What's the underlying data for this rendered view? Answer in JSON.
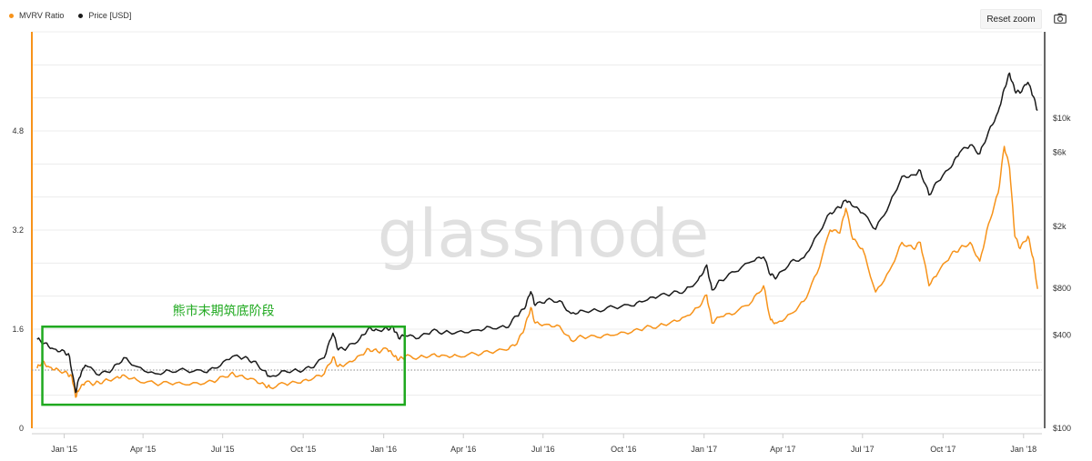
{
  "toolbar": {
    "reset_zoom_label": "Reset zoom",
    "camera_icon": "camera-icon"
  },
  "watermark": "glassnode",
  "colors": {
    "mvrv": "#f7931a",
    "price": "#1a1a1a",
    "annotation": "#1fa91f",
    "grid": "#ececec",
    "watermark": "#e0e0e0"
  },
  "chart_data": {
    "type": "line",
    "title": "",
    "legend_position": "top-left",
    "grid": true,
    "series": [
      {
        "name": "MVRV Ratio",
        "axis": "left",
        "points": [
          [
            "2014-12-01",
            0.97
          ],
          [
            "2014-12-07",
            1.08
          ],
          [
            "2014-12-15",
            0.99
          ],
          [
            "2014-12-25",
            0.95
          ],
          [
            "2015-01-05",
            0.88
          ],
          [
            "2015-01-10",
            0.82
          ],
          [
            "2015-01-14",
            0.5
          ],
          [
            "2015-01-18",
            0.62
          ],
          [
            "2015-01-25",
            0.74
          ],
          [
            "2015-02-05",
            0.72
          ],
          [
            "2015-02-15",
            0.76
          ],
          [
            "2015-03-01",
            0.82
          ],
          [
            "2015-03-10",
            0.86
          ],
          [
            "2015-03-25",
            0.78
          ],
          [
            "2015-04-15",
            0.72
          ],
          [
            "2015-05-01",
            0.73
          ],
          [
            "2015-05-20",
            0.7
          ],
          [
            "2015-06-10",
            0.72
          ],
          [
            "2015-06-25",
            0.78
          ],
          [
            "2015-07-10",
            0.88
          ],
          [
            "2015-07-20",
            0.85
          ],
          [
            "2015-08-05",
            0.8
          ],
          [
            "2015-08-18",
            0.7
          ],
          [
            "2015-08-24",
            0.66
          ],
          [
            "2015-09-10",
            0.72
          ],
          [
            "2015-09-25",
            0.73
          ],
          [
            "2015-10-10",
            0.78
          ],
          [
            "2015-10-25",
            0.88
          ],
          [
            "2015-11-04",
            1.15
          ],
          [
            "2015-11-10",
            1.0
          ],
          [
            "2015-11-20",
            1.05
          ],
          [
            "2015-12-05",
            1.18
          ],
          [
            "2015-12-15",
            1.28
          ],
          [
            "2015-12-25",
            1.24
          ],
          [
            "2016-01-05",
            1.28
          ],
          [
            "2016-01-12",
            1.17
          ],
          [
            "2016-01-18",
            1.1
          ],
          [
            "2016-01-25",
            1.16
          ],
          [
            "2016-02-10",
            1.14
          ],
          [
            "2016-02-25",
            1.19
          ],
          [
            "2016-03-10",
            1.18
          ],
          [
            "2016-03-25",
            1.17
          ],
          [
            "2016-04-15",
            1.2
          ],
          [
            "2016-05-01",
            1.23
          ],
          [
            "2016-05-20",
            1.26
          ],
          [
            "2016-06-01",
            1.36
          ],
          [
            "2016-06-10",
            1.62
          ],
          [
            "2016-06-17",
            1.95
          ],
          [
            "2016-06-22",
            1.7
          ],
          [
            "2016-07-05",
            1.68
          ],
          [
            "2016-07-20",
            1.65
          ],
          [
            "2016-08-02",
            1.42
          ],
          [
            "2016-08-15",
            1.48
          ],
          [
            "2016-09-01",
            1.47
          ],
          [
            "2016-09-20",
            1.5
          ],
          [
            "2016-10-10",
            1.55
          ],
          [
            "2016-10-25",
            1.62
          ],
          [
            "2016-11-10",
            1.65
          ],
          [
            "2016-11-25",
            1.72
          ],
          [
            "2016-12-10",
            1.8
          ],
          [
            "2016-12-25",
            1.95
          ],
          [
            "2017-01-04",
            2.15
          ],
          [
            "2017-01-10",
            1.7
          ],
          [
            "2017-01-20",
            1.8
          ],
          [
            "2017-02-05",
            1.85
          ],
          [
            "2017-02-25",
            2.05
          ],
          [
            "2017-03-10",
            2.3
          ],
          [
            "2017-03-18",
            1.75
          ],
          [
            "2017-03-25",
            1.7
          ],
          [
            "2017-04-10",
            1.85
          ],
          [
            "2017-04-25",
            2.05
          ],
          [
            "2017-05-10",
            2.5
          ],
          [
            "2017-05-25",
            3.2
          ],
          [
            "2017-06-05",
            3.15
          ],
          [
            "2017-06-12",
            3.55
          ],
          [
            "2017-06-20",
            3.05
          ],
          [
            "2017-07-01",
            2.9
          ],
          [
            "2017-07-16",
            2.2
          ],
          [
            "2017-08-01",
            2.55
          ],
          [
            "2017-08-15",
            3.0
          ],
          [
            "2017-08-28",
            2.9
          ],
          [
            "2017-09-05",
            3.0
          ],
          [
            "2017-09-15",
            2.3
          ],
          [
            "2017-09-25",
            2.5
          ],
          [
            "2017-10-10",
            2.8
          ],
          [
            "2017-10-20",
            2.9
          ],
          [
            "2017-11-01",
            3.0
          ],
          [
            "2017-11-12",
            2.7
          ],
          [
            "2017-11-22",
            3.3
          ],
          [
            "2017-12-03",
            3.8
          ],
          [
            "2017-12-10",
            4.55
          ],
          [
            "2017-12-16",
            4.2
          ],
          [
            "2017-12-22",
            3.1
          ],
          [
            "2017-12-28",
            2.9
          ],
          [
            "2018-01-06",
            3.1
          ],
          [
            "2018-01-12",
            2.75
          ],
          [
            "2018-01-17",
            2.25
          ]
        ]
      },
      {
        "name": "Price [USD]",
        "axis": "right",
        "points": [
          [
            "2014-12-01",
            375
          ],
          [
            "2014-12-10",
            355
          ],
          [
            "2014-12-20",
            325
          ],
          [
            "2015-01-01",
            315
          ],
          [
            "2015-01-07",
            290
          ],
          [
            "2015-01-14",
            170
          ],
          [
            "2015-01-18",
            210
          ],
          [
            "2015-01-25",
            255
          ],
          [
            "2015-02-10",
            220
          ],
          [
            "2015-02-25",
            240
          ],
          [
            "2015-03-10",
            285
          ],
          [
            "2015-03-25",
            250
          ],
          [
            "2015-04-15",
            225
          ],
          [
            "2015-05-01",
            235
          ],
          [
            "2015-05-20",
            237
          ],
          [
            "2015-06-10",
            230
          ],
          [
            "2015-06-25",
            245
          ],
          [
            "2015-07-12",
            290
          ],
          [
            "2015-07-25",
            285
          ],
          [
            "2015-08-05",
            270
          ],
          [
            "2015-08-18",
            235
          ],
          [
            "2015-08-24",
            215
          ],
          [
            "2015-09-10",
            235
          ],
          [
            "2015-09-25",
            235
          ],
          [
            "2015-10-10",
            245
          ],
          [
            "2015-10-25",
            285
          ],
          [
            "2015-11-04",
            410
          ],
          [
            "2015-11-10",
            320
          ],
          [
            "2015-11-20",
            330
          ],
          [
            "2015-12-05",
            380
          ],
          [
            "2015-12-15",
            445
          ],
          [
            "2015-12-25",
            430
          ],
          [
            "2016-01-05",
            440
          ],
          [
            "2016-01-12",
            445
          ],
          [
            "2016-01-18",
            380
          ],
          [
            "2016-01-25",
            395
          ],
          [
            "2016-02-10",
            380
          ],
          [
            "2016-02-25",
            425
          ],
          [
            "2016-03-10",
            415
          ],
          [
            "2016-03-25",
            418
          ],
          [
            "2016-04-15",
            430
          ],
          [
            "2016-05-01",
            450
          ],
          [
            "2016-05-20",
            445
          ],
          [
            "2016-06-01",
            530
          ],
          [
            "2016-06-10",
            590
          ],
          [
            "2016-06-17",
            760
          ],
          [
            "2016-06-22",
            620
          ],
          [
            "2016-07-05",
            670
          ],
          [
            "2016-07-20",
            665
          ],
          [
            "2016-08-02",
            550
          ],
          [
            "2016-08-15",
            575
          ],
          [
            "2016-09-01",
            575
          ],
          [
            "2016-09-20",
            605
          ],
          [
            "2016-10-10",
            615
          ],
          [
            "2016-10-25",
            660
          ],
          [
            "2016-11-10",
            710
          ],
          [
            "2016-11-25",
            740
          ],
          [
            "2016-12-10",
            770
          ],
          [
            "2016-12-25",
            900
          ],
          [
            "2017-01-04",
            1130
          ],
          [
            "2017-01-10",
            780
          ],
          [
            "2017-01-20",
            900
          ],
          [
            "2017-02-05",
            1020
          ],
          [
            "2017-02-25",
            1190
          ],
          [
            "2017-03-10",
            1270
          ],
          [
            "2017-03-18",
            970
          ],
          [
            "2017-03-25",
            940
          ],
          [
            "2017-04-10",
            1190
          ],
          [
            "2017-04-25",
            1260
          ],
          [
            "2017-05-10",
            1760
          ],
          [
            "2017-05-25",
            2450
          ],
          [
            "2017-06-05",
            2650
          ],
          [
            "2017-06-12",
            2950
          ],
          [
            "2017-06-20",
            2700
          ],
          [
            "2017-07-01",
            2450
          ],
          [
            "2017-07-16",
            1920
          ],
          [
            "2017-08-01",
            2800
          ],
          [
            "2017-08-15",
            4200
          ],
          [
            "2017-08-28",
            4300
          ],
          [
            "2017-09-05",
            4600
          ],
          [
            "2017-09-15",
            3200
          ],
          [
            "2017-09-25",
            3900
          ],
          [
            "2017-10-10",
            4800
          ],
          [
            "2017-10-20",
            6000
          ],
          [
            "2017-11-01",
            6700
          ],
          [
            "2017-11-12",
            5900
          ],
          [
            "2017-11-22",
            8200
          ],
          [
            "2017-12-03",
            11000
          ],
          [
            "2017-12-10",
            15500
          ],
          [
            "2017-12-16",
            19500
          ],
          [
            "2017-12-22",
            15000
          ],
          [
            "2017-12-28",
            14500
          ],
          [
            "2018-01-06",
            17000
          ],
          [
            "2018-01-12",
            13800
          ],
          [
            "2018-01-17",
            11200
          ]
        ]
      }
    ],
    "x_axis": {
      "type": "date",
      "range": [
        "2014-11-25",
        "2018-01-22"
      ],
      "ticks": [
        {
          "value": "2015-01-01",
          "label": "Jan '15"
        },
        {
          "value": "2015-04-01",
          "label": "Apr '15"
        },
        {
          "value": "2015-07-01",
          "label": "Jul '15"
        },
        {
          "value": "2015-10-01",
          "label": "Oct '15"
        },
        {
          "value": "2016-01-01",
          "label": "Jan '16"
        },
        {
          "value": "2016-04-01",
          "label": "Apr '16"
        },
        {
          "value": "2016-07-01",
          "label": "Jul '16"
        },
        {
          "value": "2016-10-01",
          "label": "Oct '16"
        },
        {
          "value": "2017-01-01",
          "label": "Jan '17"
        },
        {
          "value": "2017-04-01",
          "label": "Apr '17"
        },
        {
          "value": "2017-07-01",
          "label": "Jul '17"
        },
        {
          "value": "2017-10-01",
          "label": "Oct '17"
        },
        {
          "value": "2018-01-01",
          "label": "Jan '18"
        }
      ]
    },
    "y_left": {
      "type": "linear",
      "range": [
        0,
        6.4
      ],
      "ticks": [
        {
          "value": 0,
          "label": "0"
        },
        {
          "value": 1.6,
          "label": "1.6"
        },
        {
          "value": 3.2,
          "label": "3.2"
        },
        {
          "value": 4.8,
          "label": "4.8"
        }
      ]
    },
    "y_right": {
      "type": "log",
      "range": [
        100,
        36000
      ],
      "ticks": [
        {
          "value": 100,
          "label": "$100"
        },
        {
          "value": 400,
          "label": "$400"
        },
        {
          "value": 800,
          "label": "$800"
        },
        {
          "value": 2000,
          "label": "$2k"
        },
        {
          "value": 6000,
          "label": "$6k"
        },
        {
          "value": 10000,
          "label": "$10k"
        }
      ]
    },
    "reference_line": {
      "axis": "left",
      "value": 0.94,
      "style": "dotted"
    },
    "annotation": {
      "label": "熊市末期筑底阶段",
      "x_range": [
        "2014-12-07",
        "2016-01-25"
      ],
      "y_range": [
        0.38,
        1.64
      ],
      "axis": "left"
    }
  }
}
